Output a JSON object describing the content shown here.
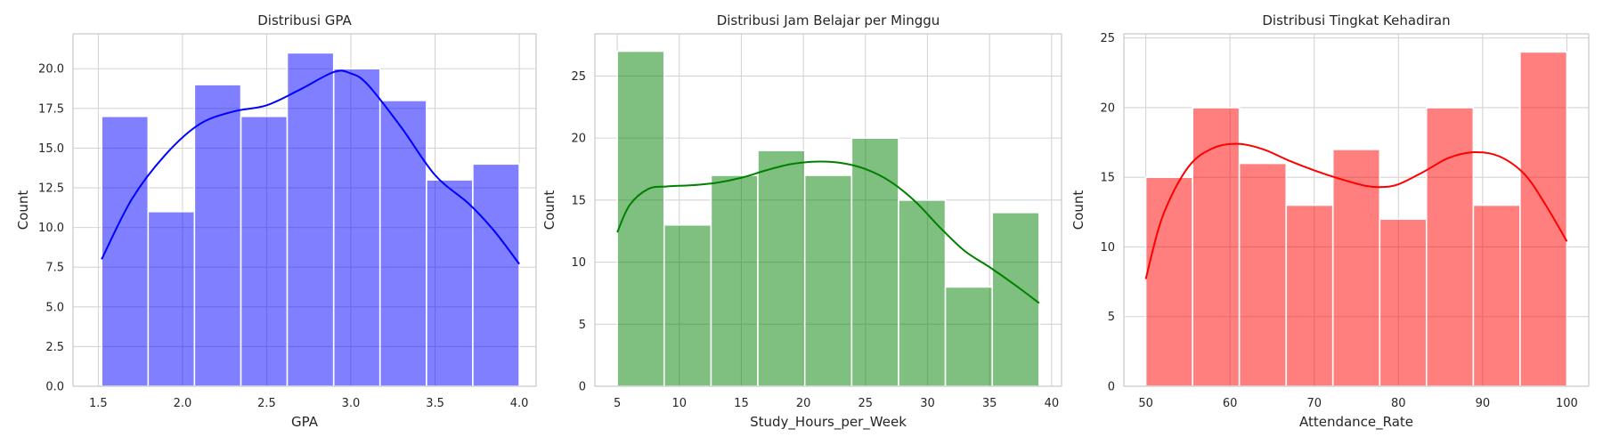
{
  "chart_data": [
    {
      "type": "bar",
      "title": "Distribusi GPA",
      "xlabel": "GPA",
      "ylabel": "Count",
      "color": "#0000ff",
      "xlim": [
        1.35,
        4.1
      ],
      "ylim": [
        0,
        22.2
      ],
      "xticks": [
        1.5,
        2.0,
        2.5,
        3.0,
        3.5,
        4.0
      ],
      "xtick_labels": [
        "1.5",
        "2.0",
        "2.5",
        "3.0",
        "3.5",
        "4.0"
      ],
      "yticks": [
        0,
        2.5,
        5,
        7.5,
        10,
        12.5,
        15,
        17.5,
        20
      ],
      "ytick_labels": [
        "0.0",
        "2.5",
        "5.0",
        "7.5",
        "10.0",
        "12.5",
        "15.0",
        "17.5",
        "20.0"
      ],
      "bin_edges": [
        1.52,
        1.796,
        2.071,
        2.347,
        2.622,
        2.898,
        3.173,
        3.449,
        3.724,
        4.0
      ],
      "counts": [
        17,
        11,
        19,
        17,
        21,
        20,
        18,
        13,
        14
      ],
      "kde": {
        "x": [
          1.52,
          1.7,
          1.9,
          2.1,
          2.3,
          2.5,
          2.7,
          2.9,
          3.0,
          3.1,
          3.3,
          3.5,
          3.7,
          3.85,
          4.0
        ],
        "y": [
          8.0,
          11.8,
          14.6,
          16.5,
          17.3,
          17.7,
          18.7,
          19.8,
          19.7,
          19.0,
          16.3,
          13.3,
          11.5,
          9.8,
          7.7
        ]
      }
    },
    {
      "type": "bar",
      "title": "Distribusi Jam Belajar per Minggu",
      "xlabel": "Study_Hours_per_Week",
      "ylabel": "Count",
      "color": "#008000",
      "xlim": [
        3.2,
        40.8
      ],
      "ylim": [
        0,
        28.4
      ],
      "xticks": [
        5,
        10,
        15,
        20,
        25,
        30,
        35,
        40
      ],
      "xtick_labels": [
        "5",
        "10",
        "15",
        "20",
        "25",
        "30",
        "35",
        "40"
      ],
      "yticks": [
        0,
        5,
        10,
        15,
        20,
        25
      ],
      "ytick_labels": [
        "0",
        "5",
        "10",
        "15",
        "20",
        "25"
      ],
      "bin_edges": [
        5,
        8.78,
        12.56,
        16.33,
        20.11,
        23.89,
        27.67,
        31.44,
        35.22,
        39
      ],
      "counts": [
        27,
        13,
        17,
        19,
        17,
        20,
        15,
        8,
        14
      ],
      "kde": {
        "x": [
          5,
          6,
          7.5,
          9,
          11,
          13,
          15,
          17,
          19,
          21,
          23,
          25,
          27,
          29,
          31,
          33,
          35,
          37,
          39
        ],
        "y": [
          12.4,
          14.6,
          15.9,
          16.1,
          16.2,
          16.4,
          16.8,
          17.4,
          17.9,
          18.1,
          18.0,
          17.5,
          16.5,
          14.9,
          12.8,
          10.9,
          9.6,
          8.2,
          6.7
        ]
      }
    },
    {
      "type": "bar",
      "title": "Distribusi Tingkat Kehadiran",
      "xlabel": "Attendance_Rate",
      "ylabel": "Count",
      "color": "#ff0000",
      "xlim": [
        47.4,
        102.6
      ],
      "ylim": [
        0,
        25.3
      ],
      "xticks": [
        50,
        60,
        70,
        80,
        90,
        100
      ],
      "xtick_labels": [
        "50",
        "60",
        "70",
        "80",
        "90",
        "100"
      ],
      "yticks": [
        0,
        5,
        10,
        15,
        20,
        25
      ],
      "ytick_labels": [
        "0",
        "5",
        "10",
        "15",
        "20",
        "25"
      ],
      "bin_edges": [
        50,
        55.56,
        61.11,
        66.67,
        72.22,
        77.78,
        83.33,
        88.89,
        94.44,
        100
      ],
      "counts": [
        15,
        20,
        16,
        13,
        17,
        12,
        20,
        13,
        24
      ],
      "kde": {
        "x": [
          50,
          52,
          55,
          58,
          61,
          64,
          67,
          70,
          73,
          76,
          78,
          80,
          83,
          86,
          89,
          92,
          95,
          97.5,
          100
        ],
        "y": [
          7.7,
          12.2,
          15.7,
          17.1,
          17.4,
          17.0,
          16.2,
          15.5,
          14.9,
          14.4,
          14.3,
          14.5,
          15.4,
          16.4,
          16.8,
          16.5,
          15.2,
          13.0,
          10.4
        ]
      }
    }
  ]
}
